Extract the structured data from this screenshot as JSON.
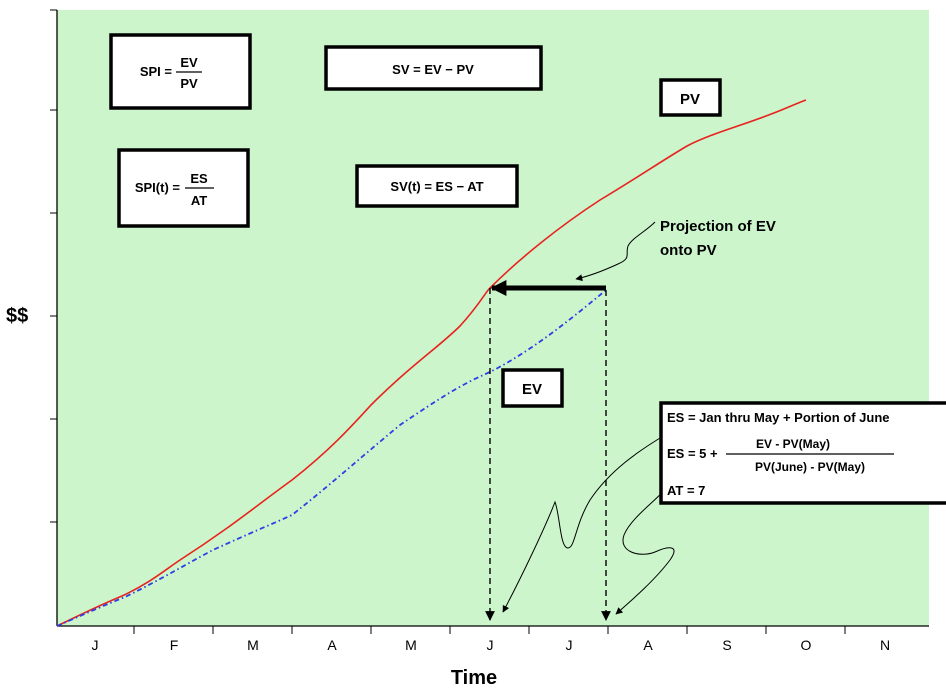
{
  "y_axis_label": "$$",
  "x_axis_label": "Time",
  "months": [
    "J",
    "F",
    "M",
    "A",
    "M",
    "J",
    "J",
    "A",
    "S",
    "O",
    "N"
  ],
  "colors": {
    "plot_bg": "#ccf5cc",
    "pv": "#e8231f",
    "ev": "#2d3fe6",
    "ink": "#000000"
  },
  "curve_labels": {
    "pv": "PV",
    "ev": "EV"
  },
  "formulas": {
    "spi_lhs": "SPI =",
    "spi_num": "EV",
    "spi_den": "PV",
    "sv": "SV = EV − PV",
    "spit_lhs": "SPI(t) =",
    "spit_num": "ES",
    "spit_den": "AT",
    "svt": "SV(t)  = ES − AT"
  },
  "projection_note": {
    "line1": "Projection of EV",
    "line2": "onto PV"
  },
  "es_box": {
    "line1": "ES = Jan thru May + Portion of June",
    "line2_lhs": "ES = 5 +",
    "line2_num": "EV - PV(May)",
    "line2_den": "PV(June) - PV(May)",
    "line3": "AT = 7"
  },
  "chart_data": {
    "type": "line",
    "categories": [
      "J",
      "F",
      "M",
      "A",
      "M",
      "J",
      "J",
      "A",
      "S",
      "O",
      "N"
    ],
    "xlabel": "Time",
    "ylabel": "$$",
    "series": [
      {
        "name": "PV",
        "x": [
          0,
          0.5,
          1,
          2,
          3,
          4,
          5,
          6,
          7,
          8,
          9
        ],
        "y": [
          0,
          12,
          22,
          42,
          62,
          90,
          120,
          148,
          172,
          193,
          212
        ]
      },
      {
        "name": "EV",
        "x": [
          0,
          0.5,
          1,
          2,
          3,
          4,
          5,
          6,
          7
        ],
        "y": [
          0,
          10,
          18,
          34,
          50,
          76,
          100,
          122,
          144
        ]
      }
    ],
    "annotations": [
      "PV",
      "EV",
      "Projection of EV onto PV"
    ]
  }
}
